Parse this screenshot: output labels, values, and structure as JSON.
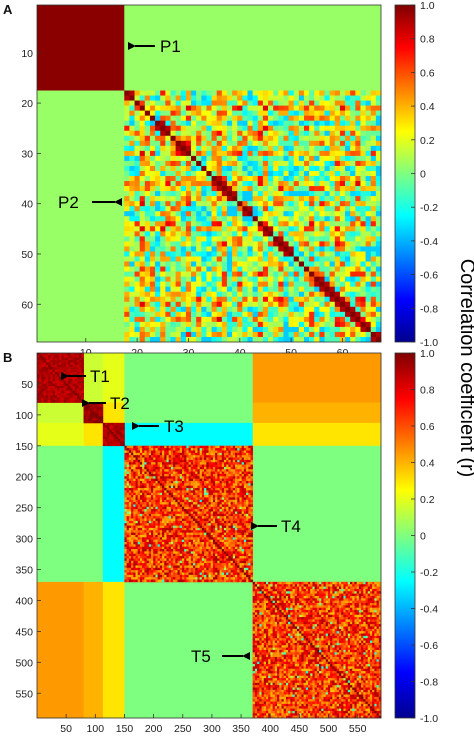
{
  "colorbar": {
    "label": "Correlation coefficient (r)",
    "ticks": [
      "1.0",
      "0.8",
      "0.6",
      "0.4",
      "0.2",
      "0",
      "-0.2",
      "-0.4",
      "-0.6",
      "-0.8",
      "-1.0"
    ],
    "colormap": "jet",
    "range": [
      -1.0,
      1.0
    ]
  },
  "chart_data": [
    {
      "type": "heatmap",
      "panel_label": "A",
      "n": 67,
      "xticks": [
        "10",
        "20",
        "30",
        "40",
        "50",
        "60"
      ],
      "xtick_values": [
        10,
        20,
        30,
        40,
        50,
        60
      ],
      "yticks": [
        "10",
        "20",
        "30",
        "40",
        "50",
        "60"
      ],
      "ytick_values": [
        10,
        20,
        30,
        40,
        50,
        60
      ],
      "blocks": [
        {
          "name": "P1",
          "start": 1,
          "end": 17,
          "within_r": 0.98
        },
        {
          "name": "P2",
          "start": 18,
          "end": 67,
          "within_r": "mixed -0.3 to 1.0, diagonal 1.0"
        }
      ],
      "between_block_r": 0.05,
      "annotations": [
        "P1",
        "P2"
      ]
    },
    {
      "type": "heatmap",
      "panel_label": "B",
      "n": 590,
      "xticks": [
        "50",
        "100",
        "150",
        "200",
        "250",
        "300",
        "350",
        "400",
        "450",
        "500",
        "550"
      ],
      "xtick_values": [
        50,
        100,
        150,
        200,
        250,
        300,
        350,
        400,
        450,
        500,
        550
      ],
      "yticks": [
        "50",
        "100",
        "150",
        "200",
        "250",
        "300",
        "350",
        "400",
        "450",
        "500",
        "550"
      ],
      "ytick_values": [
        50,
        100,
        150,
        200,
        250,
        300,
        350,
        400,
        450,
        500,
        550
      ],
      "blocks": [
        {
          "name": "T1",
          "start": 1,
          "end": 80,
          "within_r": 0.9
        },
        {
          "name": "T2",
          "start": 81,
          "end": 113,
          "within_r": 0.95
        },
        {
          "name": "T3",
          "start": 114,
          "end": 150,
          "within_r": 0.9
        },
        {
          "name": "T4",
          "start": 151,
          "end": 370,
          "within_r": 0.65
        },
        {
          "name": "T5",
          "start": 371,
          "end": 590,
          "within_r": 0.65
        }
      ],
      "between_block_r": {
        "T1-T2": 0.15,
        "T1-T3": 0.2,
        "T2-T3": 0.3,
        "T1-T4": 0.0,
        "T2-T4": 0.0,
        "T3-T4": -0.25,
        "T1-T5": 0.45,
        "T2-T5": 0.4,
        "T3-T5": 0.3,
        "T4-T5": 0.0
      },
      "annotations": [
        "T1",
        "T2",
        "T3",
        "T4",
        "T5"
      ]
    }
  ]
}
